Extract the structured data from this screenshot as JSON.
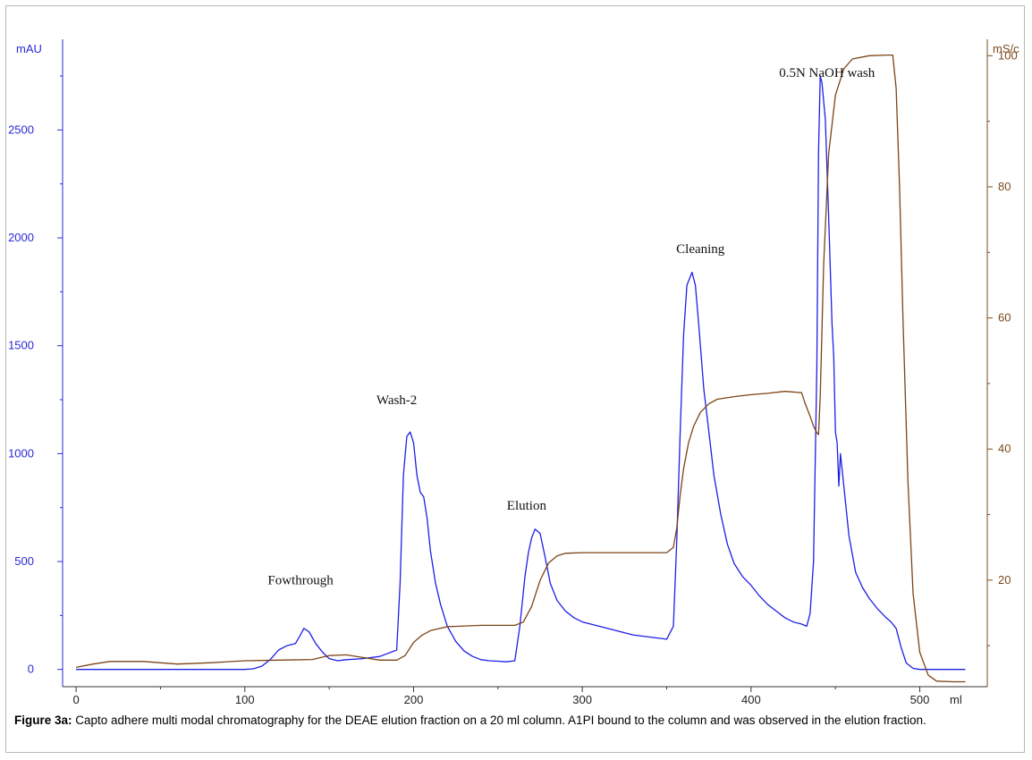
{
  "chart_data": {
    "type": "line",
    "title": "",
    "xlabel": "ml",
    "ylabel_left": "mAU",
    "ylabel_right": "mS/c",
    "xlim": [
      -8,
      540
    ],
    "ylim_left": [
      -80,
      2920
    ],
    "ylim_right": [
      3.75,
      102.5
    ],
    "x_ticks": [
      0,
      100,
      200,
      300,
      400,
      500
    ],
    "y_ticks_left": [
      0,
      500,
      1000,
      1500,
      2000,
      2500
    ],
    "y_ticks_right": [
      20,
      40,
      60,
      80,
      100
    ],
    "grid": false,
    "legend": "none",
    "colors": {
      "uv": "#1e1ee6",
      "conductivity": "#7b4416"
    },
    "series": [
      {
        "axis": "left",
        "x": [
          0,
          50,
          100,
          105,
          110,
          115,
          120,
          125,
          130,
          133,
          135,
          138,
          142,
          146,
          150,
          155,
          160,
          170,
          180,
          190,
          192,
          194,
          196,
          198,
          200,
          202,
          204,
          206,
          208,
          210,
          213,
          216,
          220,
          225,
          230,
          235,
          240,
          245,
          250,
          255,
          260,
          263,
          266,
          268,
          270,
          272,
          275,
          278,
          281,
          285,
          290,
          295,
          300,
          310,
          320,
          330,
          340,
          350,
          354,
          356,
          358,
          360,
          362,
          365,
          367,
          369,
          372,
          375,
          378,
          382,
          386,
          390,
          395,
          400,
          405,
          410,
          415,
          420,
          425,
          430,
          433,
          435,
          437,
          439,
          440,
          441,
          442,
          444,
          446,
          448,
          449,
          450,
          451,
          452,
          453,
          455,
          458,
          462,
          466,
          470,
          475,
          480,
          483,
          486,
          489,
          492,
          496,
          500,
          510,
          520,
          527
        ],
        "y": [
          0,
          0,
          0,
          3,
          15,
          45,
          90,
          110,
          120,
          160,
          190,
          175,
          120,
          80,
          50,
          40,
          45,
          50,
          60,
          90,
          400,
          900,
          1080,
          1100,
          1050,
          900,
          820,
          800,
          700,
          550,
          400,
          300,
          200,
          130,
          85,
          60,
          45,
          40,
          38,
          35,
          40,
          200,
          430,
          540,
          610,
          650,
          630,
          520,
          400,
          320,
          270,
          240,
          220,
          200,
          180,
          160,
          150,
          140,
          200,
          600,
          1100,
          1550,
          1780,
          1840,
          1780,
          1600,
          1300,
          1100,
          900,
          720,
          580,
          490,
          430,
          390,
          340,
          300,
          270,
          240,
          220,
          210,
          200,
          260,
          500,
          1400,
          2400,
          2750,
          2720,
          2550,
          2100,
          1600,
          1450,
          1100,
          1050,
          850,
          1000,
          850,
          620,
          450,
          380,
          330,
          280,
          240,
          220,
          190,
          100,
          30,
          5,
          0,
          0,
          0,
          0
        ]
      },
      {
        "axis": "right",
        "x": [
          0,
          10,
          20,
          40,
          60,
          80,
          100,
          120,
          140,
          145,
          150,
          160,
          170,
          180,
          190,
          195,
          200,
          205,
          210,
          220,
          240,
          260,
          265,
          270,
          275,
          280,
          285,
          290,
          300,
          320,
          340,
          350,
          354,
          356,
          358,
          360,
          363,
          366,
          370,
          375,
          380,
          390,
          400,
          410,
          420,
          430,
          432,
          435,
          437,
          439,
          440,
          441,
          443,
          446,
          450,
          455,
          460,
          470,
          480,
          484,
          486,
          488,
          490,
          493,
          496,
          500,
          505,
          510,
          520,
          527
        ],
        "y": [
          6.7,
          7.2,
          7.6,
          7.6,
          7.2,
          7.4,
          7.7,
          7.8,
          7.9,
          8.2,
          8.5,
          8.6,
          8.2,
          7.8,
          7.8,
          8.5,
          10.5,
          11.6,
          12.3,
          12.9,
          13.1,
          13.1,
          13.6,
          16.0,
          20.0,
          22.6,
          23.7,
          24.1,
          24.2,
          24.2,
          24.2,
          24.2,
          25.0,
          28.0,
          33.0,
          37.0,
          41.0,
          43.5,
          45.6,
          46.9,
          47.6,
          48.0,
          48.3,
          48.5,
          48.8,
          48.6,
          47.0,
          45.0,
          43.5,
          42.5,
          42.2,
          48.0,
          68.0,
          85.0,
          94.0,
          98.0,
          99.5,
          100.0,
          100.1,
          100.1,
          95.0,
          80.0,
          60.0,
          35.0,
          18.0,
          9.0,
          5.5,
          4.6,
          4.5,
          4.5
        ]
      }
    ],
    "annotations": [
      {
        "text": "Fowthrough",
        "x": 133,
        "y": 395
      },
      {
        "text": "Wash-2",
        "x": 190,
        "y": 1230
      },
      {
        "text": "Elution",
        "x": 267,
        "y": 740
      },
      {
        "text": "Cleaning",
        "x": 370,
        "y": 1930
      },
      {
        "text": "0.5N NaOH wash",
        "x": 445,
        "y": 2745
      }
    ]
  },
  "caption": {
    "label": "Figure 3a:",
    "text": "  Capto adhere multi modal chromatography for the DEAE elution fraction on a 20 ml column. A1PI bound to the column and was observed in the elution fraction."
  }
}
